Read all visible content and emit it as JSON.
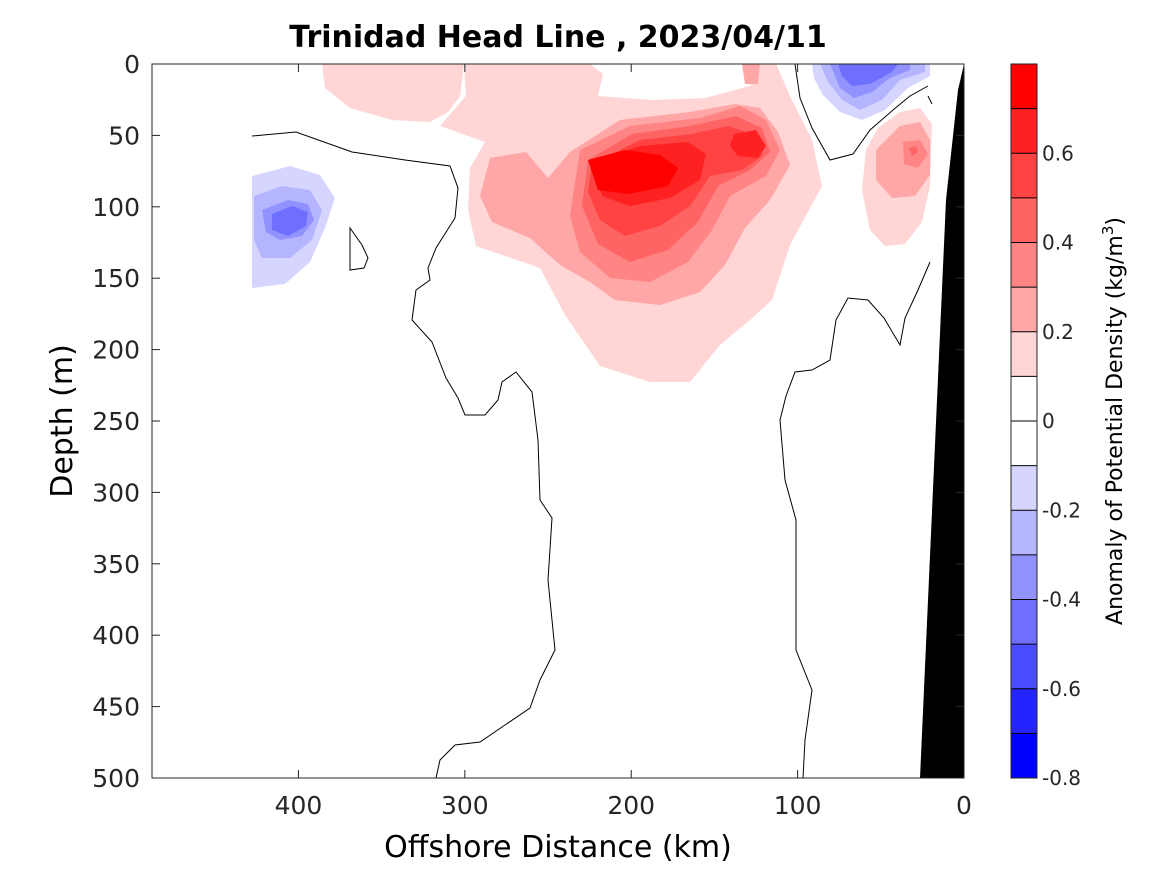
{
  "chart_data": {
    "type": "heatmap",
    "title": "Trinidad Head Line , 2023/04/11",
    "xlabel": "Offshore Distance (km)",
    "ylabel": "Depth (m)",
    "colorbar_label": "Anomaly of Potential Density (kg/m",
    "colorbar_label_sup": "3",
    "colorbar_label_close": ")",
    "xlim": [
      488,
      0
    ],
    "x_reversed": true,
    "ylim": [
      500,
      0
    ],
    "y_reversed": true,
    "x_ticks": [
      "400",
      "300",
      "200",
      "100",
      "0"
    ],
    "x_tick_values": [
      400,
      300,
      200,
      100,
      0
    ],
    "y_ticks": [
      "0",
      "50",
      "100",
      "150",
      "200",
      "250",
      "300",
      "350",
      "400",
      "450",
      "500"
    ],
    "y_tick_values": [
      0,
      50,
      100,
      150,
      200,
      250,
      300,
      350,
      400,
      450,
      500
    ],
    "colorbar_range": [
      -0.8,
      0.8
    ],
    "colorbar_ticks": [
      "0.6",
      "0.4",
      "0.2",
      "0",
      "-0.2",
      "-0.4",
      "-0.6",
      "-0.8"
    ],
    "colorbar_tick_values": [
      0.6,
      0.4,
      0.2,
      0,
      -0.2,
      -0.4,
      -0.6,
      -0.8
    ],
    "colorbar_levels": [
      {
        "from": 0.7,
        "to": 0.8,
        "color": "#ff0000"
      },
      {
        "from": 0.6,
        "to": 0.7,
        "color": "#ff2121"
      },
      {
        "from": 0.5,
        "to": 0.6,
        "color": "#ff4242"
      },
      {
        "from": 0.4,
        "to": 0.5,
        "color": "#ff6464"
      },
      {
        "from": 0.3,
        "to": 0.4,
        "color": "#ff8585"
      },
      {
        "from": 0.2,
        "to": 0.3,
        "color": "#ffa6a6"
      },
      {
        "from": 0.1,
        "to": 0.2,
        "color": "#ffd5d5"
      },
      {
        "from": 0.0,
        "to": 0.1,
        "color": "#ffffff"
      },
      {
        "from": -0.1,
        "to": 0.0,
        "color": "#ffffff"
      },
      {
        "from": -0.2,
        "to": -0.1,
        "color": "#d5d5ff"
      },
      {
        "from": -0.3,
        "to": -0.2,
        "color": "#b5b5ff"
      },
      {
        "from": -0.4,
        "to": -0.3,
        "color": "#9292ff"
      },
      {
        "from": -0.5,
        "to": -0.4,
        "color": "#6f6fff"
      },
      {
        "from": -0.6,
        "to": -0.5,
        "color": "#4c4cff"
      },
      {
        "from": -0.7,
        "to": -0.6,
        "color": "#2424ff"
      },
      {
        "from": -0.8,
        "to": -0.7,
        "color": "#0000ff"
      }
    ],
    "features": [
      {
        "name": "positive-core",
        "peak": 0.75,
        "center": [
          205,
          78
        ]
      },
      {
        "name": "positive-nearshore",
        "peak": 0.35,
        "center": [
          30,
          60
        ]
      },
      {
        "name": "negative-offshore",
        "peak": -0.5,
        "center": [
          405,
          108
        ]
      },
      {
        "name": "negative-surface",
        "peak": -0.45,
        "center": [
          75,
          15
        ]
      }
    ],
    "seafloor_color": "#000000",
    "grid": false,
    "legend": "colorbar-right"
  }
}
